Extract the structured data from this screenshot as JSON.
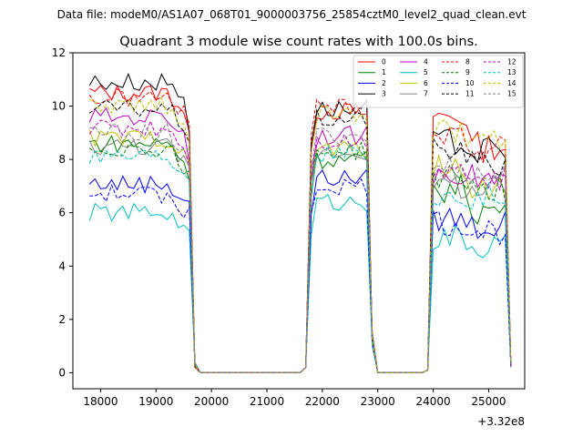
{
  "suptitle": "Data file: modeM0/AS1A07_068T01_9000003756_25854cztM0_level2_quad_clean.evt",
  "chart_data": {
    "type": "line",
    "title": "Quadrant 3 module wise count rates with 100.0s bins.",
    "xlabel": "",
    "ylabel": "",
    "x_offset_label": "+3.32e8",
    "xlim": [
      17500,
      25650
    ],
    "ylim": [
      -0.6,
      12
    ],
    "xticks": [
      18000,
      19000,
      20000,
      21000,
      22000,
      23000,
      24000,
      25000
    ],
    "yticks": [
      0,
      2,
      4,
      6,
      8,
      10,
      12
    ],
    "grid": false,
    "legend": {
      "position": "top-right",
      "columns": 4
    },
    "segments": [
      {
        "x": [
          17800,
          17900,
          18000,
          18100,
          18200,
          18300,
          18400,
          18500,
          18600,
          18700,
          18800,
          18900,
          19000,
          19100,
          19200,
          19300,
          19400,
          19500,
          19600,
          19700
        ]
      },
      {
        "x": [
          19700,
          19800,
          19900,
          20000,
          20100,
          20200,
          20300,
          20400,
          20500,
          20600,
          20700,
          20800,
          20900,
          21000,
          21100,
          21200,
          21300,
          21400,
          21500,
          21600,
          21700
        ]
      },
      {
        "x": [
          21700,
          21800,
          21900,
          22000,
          22100,
          22200,
          22300,
          22400,
          22500,
          22600,
          22700,
          22800,
          22900
        ]
      },
      {
        "x": [
          22900,
          23000,
          23100,
          23200,
          23300,
          23400,
          23500,
          23600,
          23700,
          23800,
          23900
        ]
      },
      {
        "x": [
          23900,
          24000,
          24100,
          24200,
          24300,
          24400,
          24500,
          24600,
          24700,
          24800,
          24900,
          25000,
          25100,
          25200,
          25300,
          25400
        ]
      }
    ],
    "series": [
      {
        "name": "0",
        "color": "#ff0000",
        "dash": "solid",
        "levels": [
          10.5,
          9.8,
          9.6,
          8.5
        ]
      },
      {
        "name": "1",
        "color": "#008000",
        "dash": "solid",
        "levels": [
          8.6,
          8.0,
          6.9,
          6.1
        ]
      },
      {
        "name": "2",
        "color": "#0000ff",
        "dash": "solid",
        "levels": [
          7.1,
          7.3,
          5.8,
          5.5
        ]
      },
      {
        "name": "3",
        "color": "#000000",
        "dash": "solid",
        "levels": [
          10.9,
          9.9,
          8.6,
          8.3
        ]
      },
      {
        "name": "4",
        "color": "#c000c0",
        "dash": "solid",
        "levels": [
          9.6,
          8.9,
          7.6,
          7.3
        ]
      },
      {
        "name": "5",
        "color": "#00c0c0",
        "dash": "solid",
        "levels": [
          6.0,
          6.4,
          5.0,
          4.7
        ]
      },
      {
        "name": "6",
        "color": "#c0c000",
        "dash": "solid",
        "levels": [
          8.8,
          8.4,
          7.6,
          7.0
        ]
      },
      {
        "name": "7",
        "color": "#808080",
        "dash": "solid",
        "levels": [
          8.5,
          8.3,
          7.0,
          6.8
        ]
      },
      {
        "name": "8",
        "color": "#ff0000",
        "dash": "dashed",
        "levels": [
          10.3,
          10.0,
          8.9,
          8.4
        ]
      },
      {
        "name": "9",
        "color": "#008000",
        "dash": "dashed",
        "levels": [
          8.4,
          8.3,
          7.3,
          6.9
        ]
      },
      {
        "name": "10",
        "color": "#0000ff",
        "dash": "dashed",
        "levels": [
          6.7,
          7.0,
          5.6,
          5.3
        ]
      },
      {
        "name": "11",
        "color": "#000000",
        "dash": "dashed",
        "levels": [
          9.9,
          9.5,
          8.3,
          7.8
        ]
      },
      {
        "name": "12",
        "color": "#c000c0",
        "dash": "dashed",
        "levels": [
          9.2,
          8.7,
          7.8,
          7.2
        ]
      },
      {
        "name": "13",
        "color": "#00c0c0",
        "dash": "dashed",
        "levels": [
          8.2,
          8.2,
          6.7,
          6.6
        ]
      },
      {
        "name": "14",
        "color": "#c0c000",
        "dash": "dashed",
        "levels": [
          10.0,
          9.7,
          9.0,
          8.6
        ]
      },
      {
        "name": "15",
        "color": "#808080",
        "dash": "dashed",
        "levels": [
          9.0,
          8.9,
          7.7,
          7.4
        ]
      }
    ]
  }
}
